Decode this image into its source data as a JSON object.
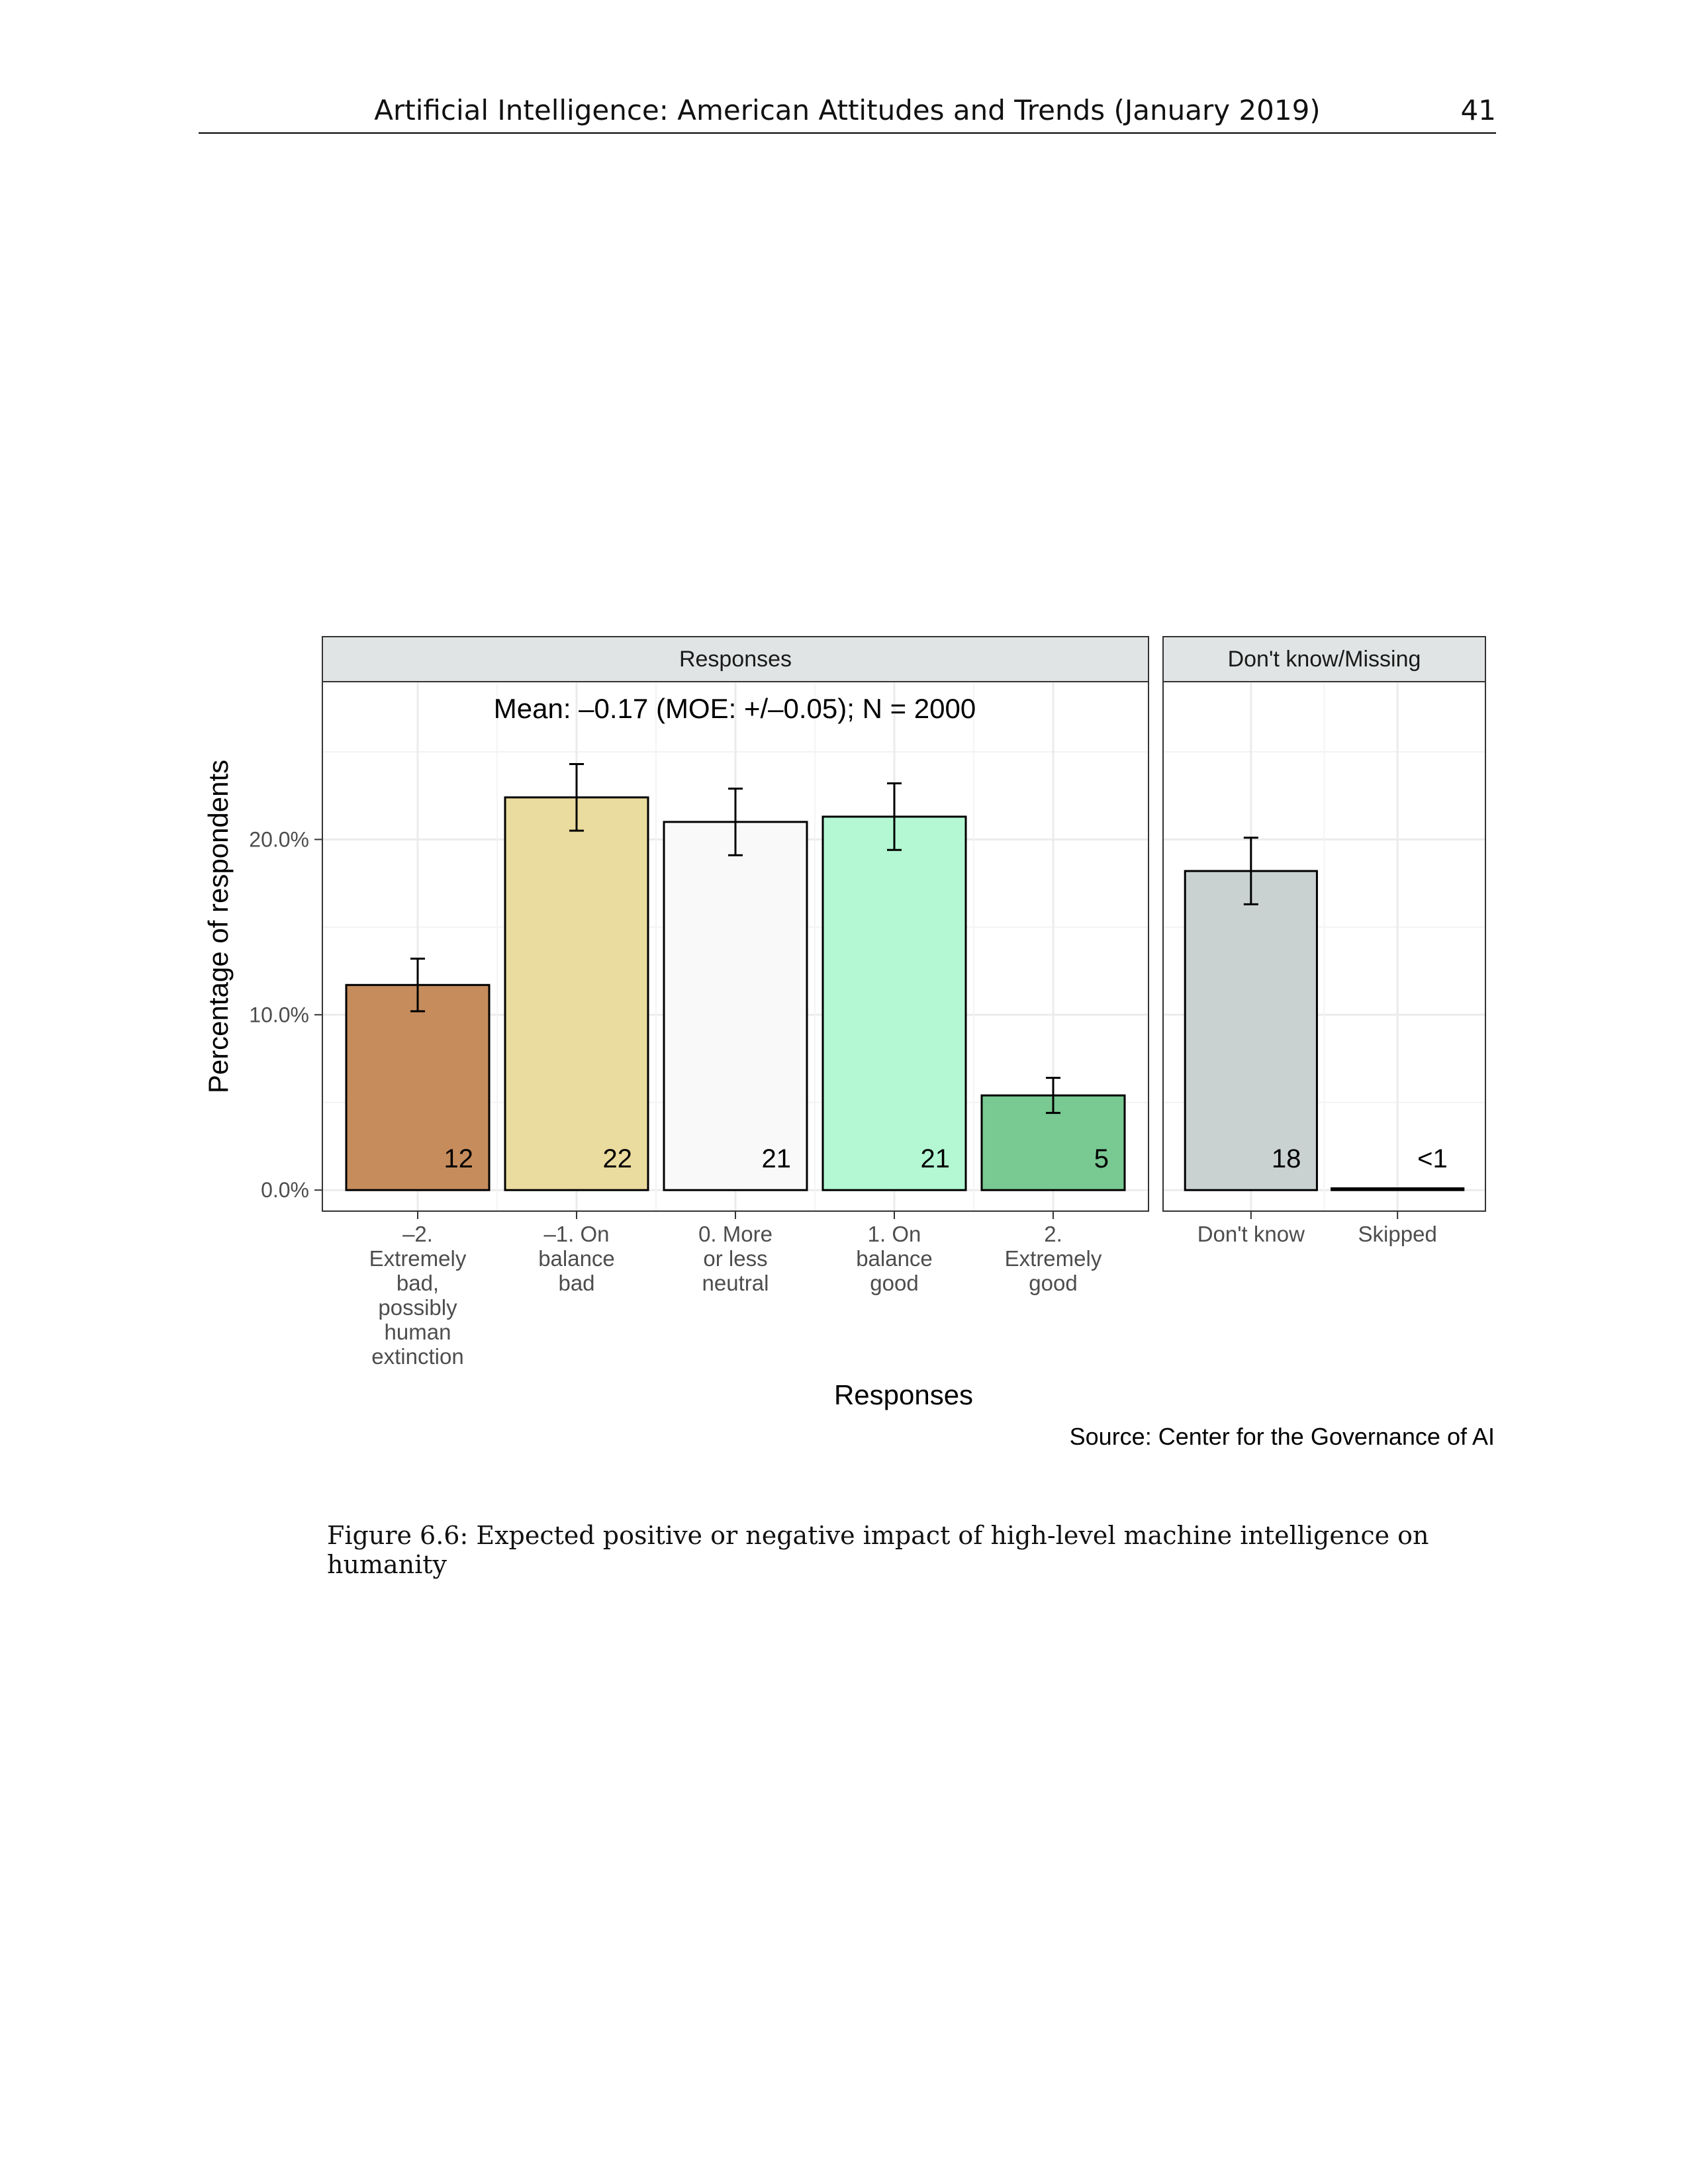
{
  "header": {
    "running_title": "Artificial Intelligence: American Attitudes and Trends (January 2019)",
    "page_number": "41"
  },
  "figure": {
    "caption": "Figure 6.6: Expected positive or negative impact of high-level machine intelligence on humanity",
    "source": "Source: Center for the Governance of AI"
  },
  "chart_data": {
    "type": "bar",
    "annotation": "Mean: –0.17 (MOE: +/–0.05); N = 2000",
    "xlabel": "Responses",
    "ylabel": "Percentage of respondents",
    "ylim": [
      -1.2,
      29
    ],
    "yticks": [
      0,
      10,
      20
    ],
    "ytick_labels": [
      "0.0%",
      "10.0%",
      "20.0%"
    ],
    "grid": true,
    "panels": [
      {
        "title": "Responses",
        "categories": [
          [
            "–2.",
            "Extremely",
            "bad,",
            "possibly",
            "human",
            "extinction"
          ],
          [
            "–1. On",
            "balance",
            "bad"
          ],
          [
            "0. More",
            "or less",
            "neutral"
          ],
          [
            "1. On",
            "balance",
            "good"
          ],
          [
            "2.",
            "Extremely",
            "good"
          ]
        ],
        "values": [
          11.7,
          22.4,
          21.0,
          21.3,
          5.4
        ],
        "error_low": [
          10.2,
          20.5,
          19.1,
          19.4,
          4.4
        ],
        "error_high": [
          13.2,
          24.3,
          22.9,
          23.2,
          6.4
        ],
        "labels": [
          "12",
          "22",
          "21",
          "21",
          "5"
        ],
        "colors": [
          "#c68c5c",
          "#eadb9e",
          "#f9f9f9",
          "#b3f8d3",
          "#79c992"
        ]
      },
      {
        "title": "Don't know/Missing",
        "categories": [
          [
            "Don't know"
          ],
          [
            "Skipped"
          ]
        ],
        "values": [
          18.2,
          0.1
        ],
        "error_low": [
          16.3,
          null
        ],
        "error_high": [
          20.1,
          null
        ],
        "labels": [
          "18",
          "<1"
        ],
        "colors": [
          "#c9d1d1",
          "#c9d1d1"
        ]
      }
    ]
  }
}
